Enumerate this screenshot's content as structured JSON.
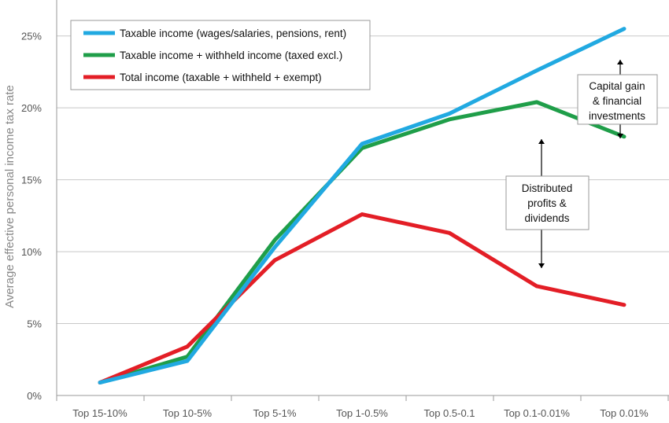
{
  "chart_data": {
    "type": "line",
    "title": "",
    "xlabel": "",
    "ylabel": "Average effective personal income tax rate",
    "categories": [
      "Top 15-10%",
      "Top 10-5%",
      "Top 5-1%",
      "Top 1-0.5%",
      "Top 0.5-0.1",
      "Top 0.1-0.01%",
      "Top 0.01%"
    ],
    "ylim": [
      0,
      27.5
    ],
    "yticks": [
      0,
      5,
      10,
      15,
      20,
      25
    ],
    "ytick_labels": [
      "0%",
      "5%",
      "10%",
      "15%",
      "20%",
      "25%"
    ],
    "grid": true,
    "legend_position": "top-left",
    "series": [
      {
        "name": "Taxable income (wages/salaries, pensions, rent)",
        "color": "#21a9e1",
        "values": [
          0.9,
          2.4,
          10.3,
          17.5,
          19.6,
          22.6,
          25.5
        ]
      },
      {
        "name": "Taxable income + withheld income (taxed excl.)",
        "color": "#1f9e49",
        "values": [
          0.9,
          2.7,
          10.8,
          17.2,
          19.2,
          20.4,
          18.0
        ]
      },
      {
        "name": "Total income (taxable + withheld + exempt)",
        "color": "#e31e26",
        "values": [
          0.9,
          3.4,
          9.4,
          12.6,
          11.3,
          7.6,
          6.3
        ]
      }
    ],
    "annotations": [
      {
        "lines": [
          "Capital gain",
          "& financial",
          "investments"
        ]
      },
      {
        "lines": [
          "Distributed",
          "profits &",
          "dividends"
        ]
      }
    ]
  }
}
